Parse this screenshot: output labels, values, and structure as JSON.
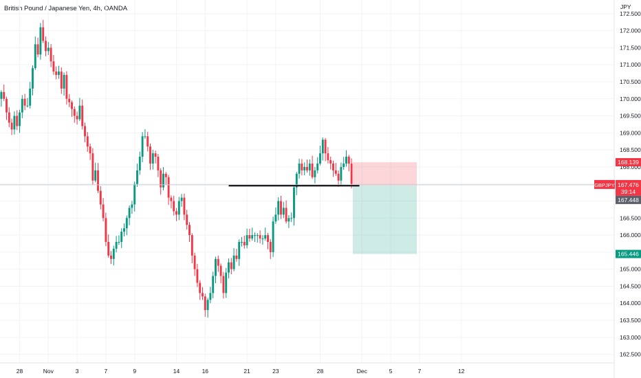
{
  "header": {
    "title": "British Pound / Japanese Yen, 4h, OANDA"
  },
  "axis": {
    "currency": "JPY"
  },
  "colors": {
    "up": "#089981",
    "down": "#f23645",
    "grid": "#f0f3fa",
    "text": "#131722"
  },
  "chart_data": {
    "type": "candlestick",
    "ylim": [
      162.25,
      172.9
    ],
    "y_ticks": [
      "172.500",
      "172.000",
      "171.500",
      "171.000",
      "170.500",
      "170.000",
      "169.500",
      "169.000",
      "168.500",
      "168.000",
      "167.500",
      "167.000",
      "166.500",
      "166.000",
      "165.500",
      "165.000",
      "164.500",
      "164.000",
      "163.500",
      "163.000",
      "162.500"
    ],
    "x_ticks": [
      "28",
      "Nov",
      "3",
      "7",
      "9",
      "14",
      "16",
      "21",
      "23",
      "28",
      "Dec",
      "5",
      "7",
      "12"
    ],
    "bars_total": 235,
    "closes": [
      170.2,
      170.0,
      169.6,
      169.3,
      169.1,
      169.5,
      169.2,
      169.6,
      170.0,
      169.8,
      169.8,
      170.3,
      170.9,
      171.6,
      171.3,
      172.1,
      171.7,
      171.4,
      171.5,
      171.1,
      170.8,
      170.7,
      170.8,
      170.3,
      170.7,
      170.0,
      169.9,
      169.7,
      169.5,
      169.4,
      169.8,
      169.2,
      168.9,
      168.6,
      168.4,
      167.6,
      167.9,
      167.3,
      166.9,
      166.5,
      165.8,
      165.4,
      165.3,
      165.6,
      165.8,
      165.8,
      166.1,
      166.2,
      166.5,
      166.8,
      166.9,
      167.5,
      167.9,
      168.3,
      168.9,
      168.9,
      168.6,
      168.1,
      168.4,
      168.3,
      167.9,
      167.4,
      167.8,
      167.7,
      167.1,
      167.0,
      166.7,
      166.6,
      167.0,
      167.1,
      166.6,
      166.3,
      166.0,
      165.4,
      165.0,
      164.6,
      164.3,
      164.2,
      163.8,
      164.1,
      164.3,
      164.8,
      165.3,
      165.1,
      164.8,
      164.3,
      164.9,
      165.2,
      165.0,
      165.4,
      165.3,
      165.8,
      165.8,
      165.7,
      166.0,
      165.9,
      166.0,
      166.0,
      166.0,
      165.9,
      165.9,
      166.0,
      165.8,
      165.5,
      166.4,
      166.6,
      167.0,
      166.6,
      166.8,
      166.4,
      166.5,
      166.5,
      167.4,
      167.8,
      168.1,
      167.9,
      168.0,
      167.9,
      168.1,
      167.7,
      167.9,
      168.1,
      168.4,
      168.8,
      168.4,
      168.2,
      168.1,
      167.9,
      167.8,
      167.6,
      168.0,
      168.1,
      168.3,
      168.1,
      167.5
    ],
    "levels": {
      "entry": 167.448,
      "stop": 168.139,
      "target": 165.446,
      "current": 167.476
    },
    "labels": {
      "symbol": "GBPJPY",
      "current": "167.476",
      "countdown": "39:14",
      "entry": "167.448",
      "stop": "168.139",
      "target": "165.446"
    },
    "support_line": {
      "price": 167.45,
      "from_bar": 87,
      "to_bar": 137
    },
    "position": {
      "from_bar": 135,
      "to_bar": 159
    }
  }
}
